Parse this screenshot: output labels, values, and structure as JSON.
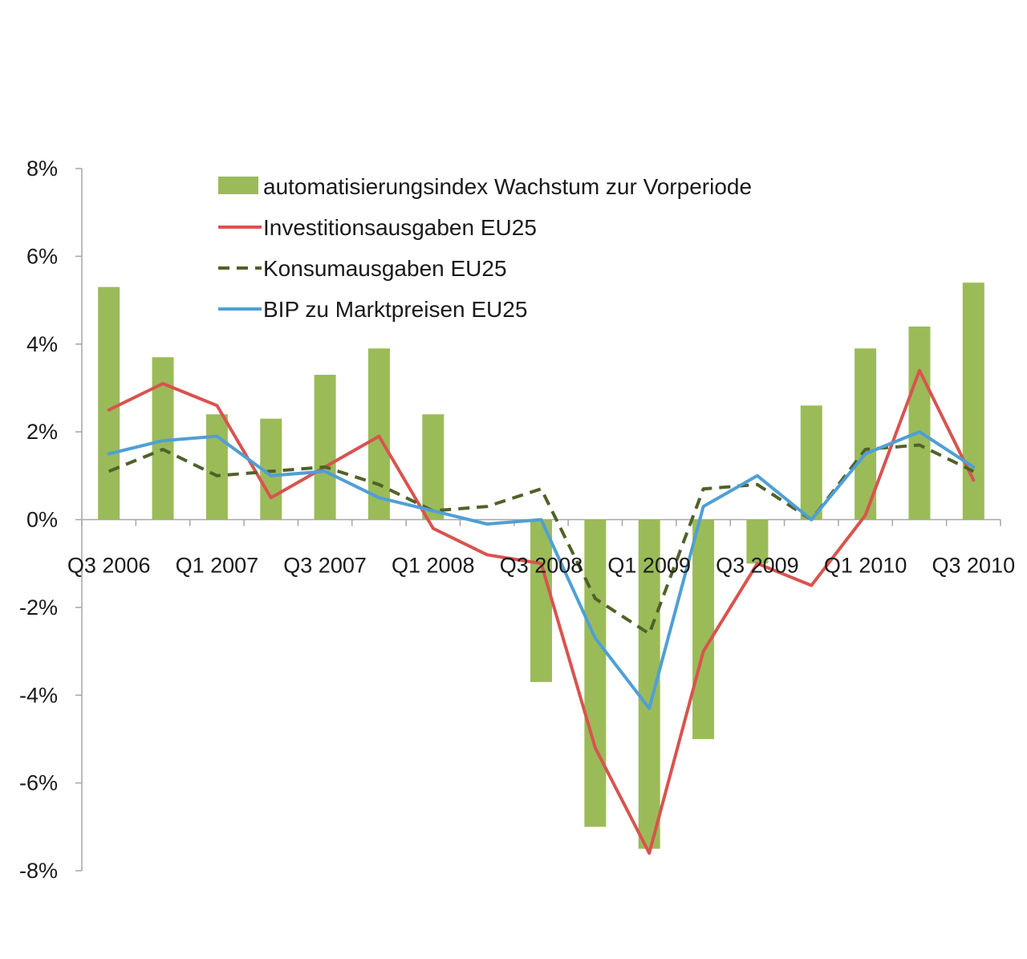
{
  "chart_data": {
    "type": "bar",
    "title": "",
    "xlabel": "",
    "ylabel": "",
    "ylim": [
      -0.08,
      0.08
    ],
    "yticks": [
      "8%",
      "6%",
      "4%",
      "2%",
      "0%",
      "-2%",
      "-4%",
      "-6%",
      "-8%"
    ],
    "ytick_values": [
      0.08,
      0.06,
      0.04,
      0.02,
      0,
      -0.02,
      -0.04,
      -0.06,
      -0.08
    ],
    "x_tick_labels": [
      {
        "index": 0,
        "label": "Q3 2006"
      },
      {
        "index": 2,
        "label": "Q1 2007"
      },
      {
        "index": 4,
        "label": "Q3 2007"
      },
      {
        "index": 6,
        "label": "Q1 2008"
      },
      {
        "index": 8,
        "label": "Q3 2008"
      },
      {
        "index": 10,
        "label": "Q1 2009"
      },
      {
        "index": 12,
        "label": "Q3 2009"
      },
      {
        "index": 14,
        "label": "Q1 2010"
      },
      {
        "index": 16,
        "label": "Q3 2010"
      }
    ],
    "categories": [
      "Q3 2006",
      "Q4 2006",
      "Q1 2007",
      "Q2 2007",
      "Q3 2007",
      "Q4 2007",
      "Q1 2008",
      "Q2 2008",
      "Q3 2008",
      "Q4 2008",
      "Q1 2009",
      "Q2 2009",
      "Q3 2009",
      "Q4 2009",
      "Q1 2010",
      "Q2 2010",
      "Q3 2010"
    ],
    "grid": false,
    "legend_position": "top-left inside plot",
    "series": [
      {
        "name": "automatisierungsindex Wachstum zur Vorperiode",
        "type": "bar",
        "color": "#9bbb59",
        "values": [
          0.053,
          0.037,
          0.024,
          0.023,
          0.033,
          0.039,
          0.024,
          0.0,
          -0.037,
          -0.07,
          -0.075,
          -0.05,
          -0.01,
          0.026,
          0.039,
          0.044,
          0.054
        ]
      },
      {
        "name": "Investitionsausgaben EU25",
        "type": "line",
        "style": "solid",
        "color": "#d9534f",
        "values": [
          0.025,
          0.031,
          0.026,
          0.005,
          0.012,
          0.019,
          -0.002,
          -0.008,
          -0.01,
          -0.052,
          -0.076,
          -0.03,
          -0.01,
          -0.015,
          0.001,
          0.034,
          0.009
        ]
      },
      {
        "name": "Konsumausgaben EU25",
        "type": "line",
        "style": "dashed",
        "color": "#4f6228",
        "values": [
          0.011,
          0.016,
          0.01,
          0.011,
          0.012,
          0.008,
          0.002,
          0.003,
          0.007,
          -0.018,
          -0.026,
          0.007,
          0.008,
          0.0,
          0.016,
          0.017,
          0.011
        ]
      },
      {
        "name": "BIP zu Marktpreisen EU25",
        "type": "line",
        "style": "solid",
        "color": "#4f9fd6",
        "values": [
          0.015,
          0.018,
          0.019,
          0.01,
          0.011,
          0.005,
          0.002,
          -0.001,
          0.0,
          -0.027,
          -0.043,
          0.003,
          0.01,
          0.0,
          0.015,
          0.02,
          0.012
        ]
      }
    ]
  }
}
